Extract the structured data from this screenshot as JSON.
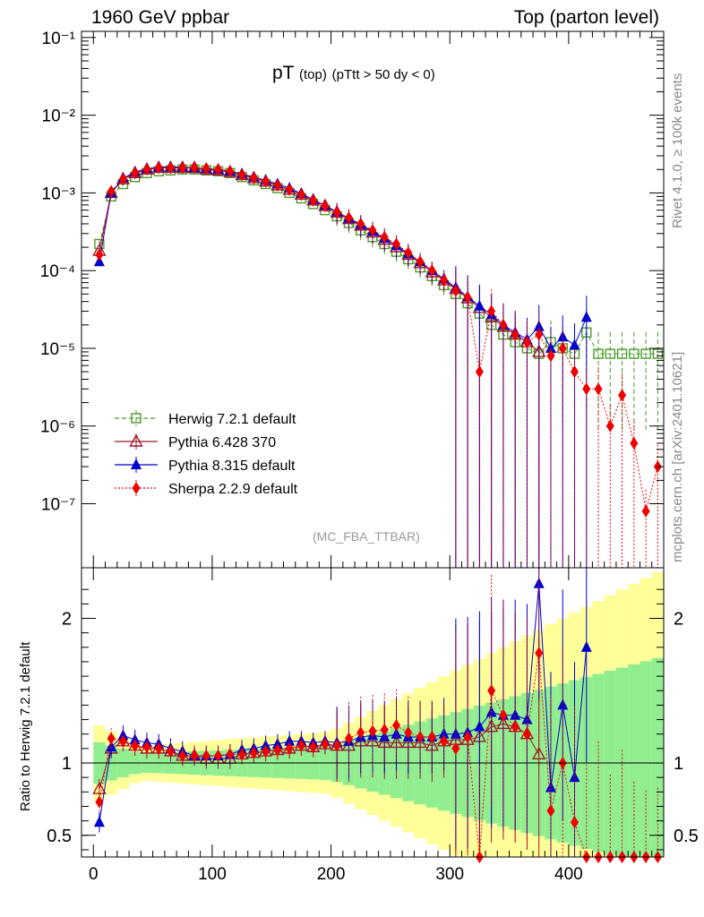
{
  "header": {
    "left": "1960 GeV ppbar",
    "right": "Top (parton level)"
  },
  "title": {
    "main": "pT",
    "sub1": "(top)",
    "sub2": "(pTtt > 50 dy < 0)"
  },
  "side_labels": {
    "rivet": "Rivet 4.1.0, ≥ 100k events",
    "mcplots": "mcplots.cern.ch [arXiv:2401.10621]"
  },
  "analysis_tag": "(MC_FBA_TTBAR)",
  "ratio_ylabel": "Ratio to Herwig 7.2.1 default",
  "colors": {
    "herwig": "#4c9a2a",
    "pythia6": "#a0182a",
    "pythia8": "#0000cc",
    "sherpa": "#ee0000",
    "band_green": "#90ee90",
    "band_yellow": "#ffff99"
  },
  "chart_data": {
    "type": "line",
    "title": "pT (top) (pTtt > 50 dy < 0)",
    "x_range": [
      -10,
      480
    ],
    "x_ticks": [
      "0",
      "100",
      "200",
      "300",
      "400"
    ],
    "main_y_scale": "log",
    "main_y_range": [
      1.5e-08,
      0.12
    ],
    "main_y_ticks": [
      "10⁻⁷",
      "10⁻⁶",
      "10⁻⁵",
      "10⁻⁴",
      "10⁻³",
      "10⁻²",
      "10⁻¹"
    ],
    "ratio_y_range": [
      0.35,
      2.35
    ],
    "ratio_y_ticks": [
      "0.5",
      "1",
      "2"
    ],
    "legend": [
      "Herwig 7.2.1 default",
      "Pythia 6.428 370",
      "Pythia 8.315 default",
      "Sherpa 2.2.9 default"
    ],
    "series": [
      {
        "name": "Herwig 7.2.1 default",
        "x": [
          5,
          15,
          25,
          35,
          45,
          55,
          65,
          75,
          85,
          95,
          105,
          115,
          125,
          135,
          145,
          155,
          165,
          175,
          185,
          195,
          205,
          215,
          225,
          235,
          245,
          255,
          265,
          275,
          285,
          295,
          305,
          315,
          325,
          335,
          345,
          355,
          365,
          375,
          385,
          395,
          405,
          415,
          425,
          435,
          445,
          455,
          465,
          475
        ],
        "values": [
          0.00022,
          0.0009,
          0.0013,
          0.0016,
          0.0018,
          0.0019,
          0.00195,
          0.002,
          0.002,
          0.00195,
          0.0019,
          0.0018,
          0.0016,
          0.00145,
          0.0013,
          0.00115,
          0.001,
          0.00085,
          0.00072,
          0.0006,
          0.0005,
          0.00041,
          0.00033,
          0.00027,
          0.00022,
          0.000175,
          0.00014,
          0.00011,
          8.5e-05,
          6.5e-05,
          5e-05,
          3.8e-05,
          2.8e-05,
          2e-05,
          1.5e-05,
          1.2e-05,
          1e-05,
          8.5e-06,
          1.2e-05,
          1e-05,
          8.5e-06,
          1.6e-05,
          8.5e-06,
          8.5e-06,
          8.5e-06,
          8.5e-06,
          8.5e-06,
          8.5e-06
        ]
      },
      {
        "name": "Pythia 6.428 370",
        "x": [
          5,
          15,
          25,
          35,
          45,
          55,
          65,
          75,
          85,
          95,
          105,
          115,
          125,
          135,
          145,
          155,
          165,
          175,
          185,
          195,
          205,
          215,
          225,
          235,
          245,
          255,
          265,
          275,
          285,
          295,
          305,
          315,
          325,
          335,
          345,
          355,
          365,
          375
        ],
        "values": [
          0.00018,
          0.001,
          0.0015,
          0.0018,
          0.002,
          0.0021,
          0.0021,
          0.0021,
          0.0021,
          0.002,
          0.00195,
          0.00185,
          0.0017,
          0.00155,
          0.0014,
          0.00125,
          0.0011,
          0.00095,
          0.0008,
          0.00068,
          0.00056,
          0.00046,
          0.00038,
          0.00031,
          0.00025,
          0.0002,
          0.00016,
          0.000125,
          9.5e-05,
          7.5e-05,
          5.8e-05,
          4.4e-05,
          3.3e-05,
          2.5e-05,
          1.9e-05,
          1.5e-05,
          1.2e-05,
          9e-06
        ]
      },
      {
        "name": "Pythia 8.315 default",
        "x": [
          5,
          15,
          25,
          35,
          45,
          55,
          65,
          75,
          85,
          95,
          105,
          115,
          125,
          135,
          145,
          155,
          165,
          175,
          185,
          195,
          205,
          215,
          225,
          235,
          245,
          255,
          265,
          275,
          285,
          295,
          305,
          315,
          325,
          335,
          345,
          355,
          365,
          375,
          385,
          395,
          405,
          415
        ],
        "values": [
          0.00013,
          0.001,
          0.00155,
          0.00185,
          0.00205,
          0.00215,
          0.00215,
          0.00215,
          0.0021,
          0.00205,
          0.002,
          0.0019,
          0.00175,
          0.0016,
          0.00145,
          0.0013,
          0.00115,
          0.00098,
          0.00082,
          0.00069,
          0.00057,
          0.00047,
          0.00039,
          0.00032,
          0.00026,
          0.00021,
          0.000165,
          0.00013,
          0.0001,
          7.8e-05,
          6e-05,
          4.6e-05,
          3.5e-05,
          2.7e-05,
          2e-05,
          1.6e-05,
          1.3e-05,
          1.9e-05,
          1e-05,
          1.4e-05,
          1.1e-05,
          2.5e-05
        ]
      },
      {
        "name": "Sherpa 2.2.9 default",
        "x": [
          5,
          15,
          25,
          35,
          45,
          55,
          65,
          75,
          85,
          95,
          105,
          115,
          125,
          135,
          145,
          155,
          165,
          175,
          185,
          195,
          205,
          215,
          225,
          235,
          245,
          255,
          265,
          275,
          285,
          295,
          305,
          315,
          325,
          335,
          345,
          355,
          365,
          375,
          385,
          395,
          405,
          415,
          425,
          435,
          445,
          455,
          465,
          475
        ],
        "values": [
          0.00016,
          0.00105,
          0.0015,
          0.0018,
          0.002,
          0.0021,
          0.0021,
          0.0021,
          0.0021,
          0.00205,
          0.002,
          0.0019,
          0.0017,
          0.00155,
          0.0014,
          0.00125,
          0.0011,
          0.00095,
          0.0008,
          0.00068,
          0.00056,
          0.00048,
          0.0004,
          0.00033,
          0.00027,
          0.00022,
          0.00017,
          0.00013,
          0.0001,
          7.5e-05,
          5.5e-05,
          4.5e-05,
          5e-06,
          3e-05,
          2e-05,
          1.5e-05,
          1.2e-05,
          1.5e-05,
          8e-06,
          1e-05,
          5e-06,
          3e-06,
          3e-06,
          1e-06,
          2.5e-06,
          6e-07,
          8e-08,
          3e-07
        ]
      }
    ],
    "ratio_series": [
      {
        "name": "Pythia 6.428 370",
        "values": [
          0.82,
          1.1,
          1.15,
          1.12,
          1.1,
          1.1,
          1.08,
          1.05,
          1.05,
          1.03,
          1.03,
          1.03,
          1.06,
          1.07,
          1.08,
          1.09,
          1.1,
          1.12,
          1.11,
          1.13,
          1.12,
          1.12,
          1.15,
          1.15,
          1.14,
          1.14,
          1.14,
          1.14,
          1.12,
          1.15,
          1.16,
          1.16,
          1.18,
          1.25,
          1.27,
          1.25,
          1.2,
          1.06
        ]
      },
      {
        "name": "Pythia 8.315 default",
        "values": [
          0.59,
          1.11,
          1.19,
          1.16,
          1.14,
          1.13,
          1.1,
          1.08,
          1.05,
          1.05,
          1.05,
          1.06,
          1.09,
          1.1,
          1.12,
          1.13,
          1.15,
          1.15,
          1.14,
          1.15,
          1.14,
          1.15,
          1.18,
          1.19,
          1.18,
          1.2,
          1.18,
          1.18,
          1.18,
          1.2,
          1.2,
          1.21,
          1.25,
          1.35,
          1.33,
          1.33,
          1.3,
          2.24,
          0.83,
          1.4,
          0.9,
          1.8
        ]
      },
      {
        "name": "Sherpa 2.2.9 default",
        "values": [
          0.73,
          1.17,
          1.15,
          1.12,
          1.11,
          1.1,
          1.08,
          1.05,
          1.05,
          1.05,
          1.05,
          1.06,
          1.06,
          1.07,
          1.08,
          1.09,
          1.1,
          1.12,
          1.11,
          1.13,
          1.12,
          1.17,
          1.21,
          1.22,
          1.23,
          1.26,
          1.21,
          1.18,
          1.18,
          1.15,
          1.1,
          1.18,
          0.18,
          1.5,
          1.33,
          1.25,
          1.2,
          1.76,
          0.67,
          1,
          0.59,
          0.19,
          0.35,
          0.12,
          0.29,
          0.07,
          0.01,
          0.03
        ]
      }
    ],
    "uncertainty_band": {
      "inner_color": "green",
      "outer_color": "yellow",
      "center": 1
    }
  }
}
